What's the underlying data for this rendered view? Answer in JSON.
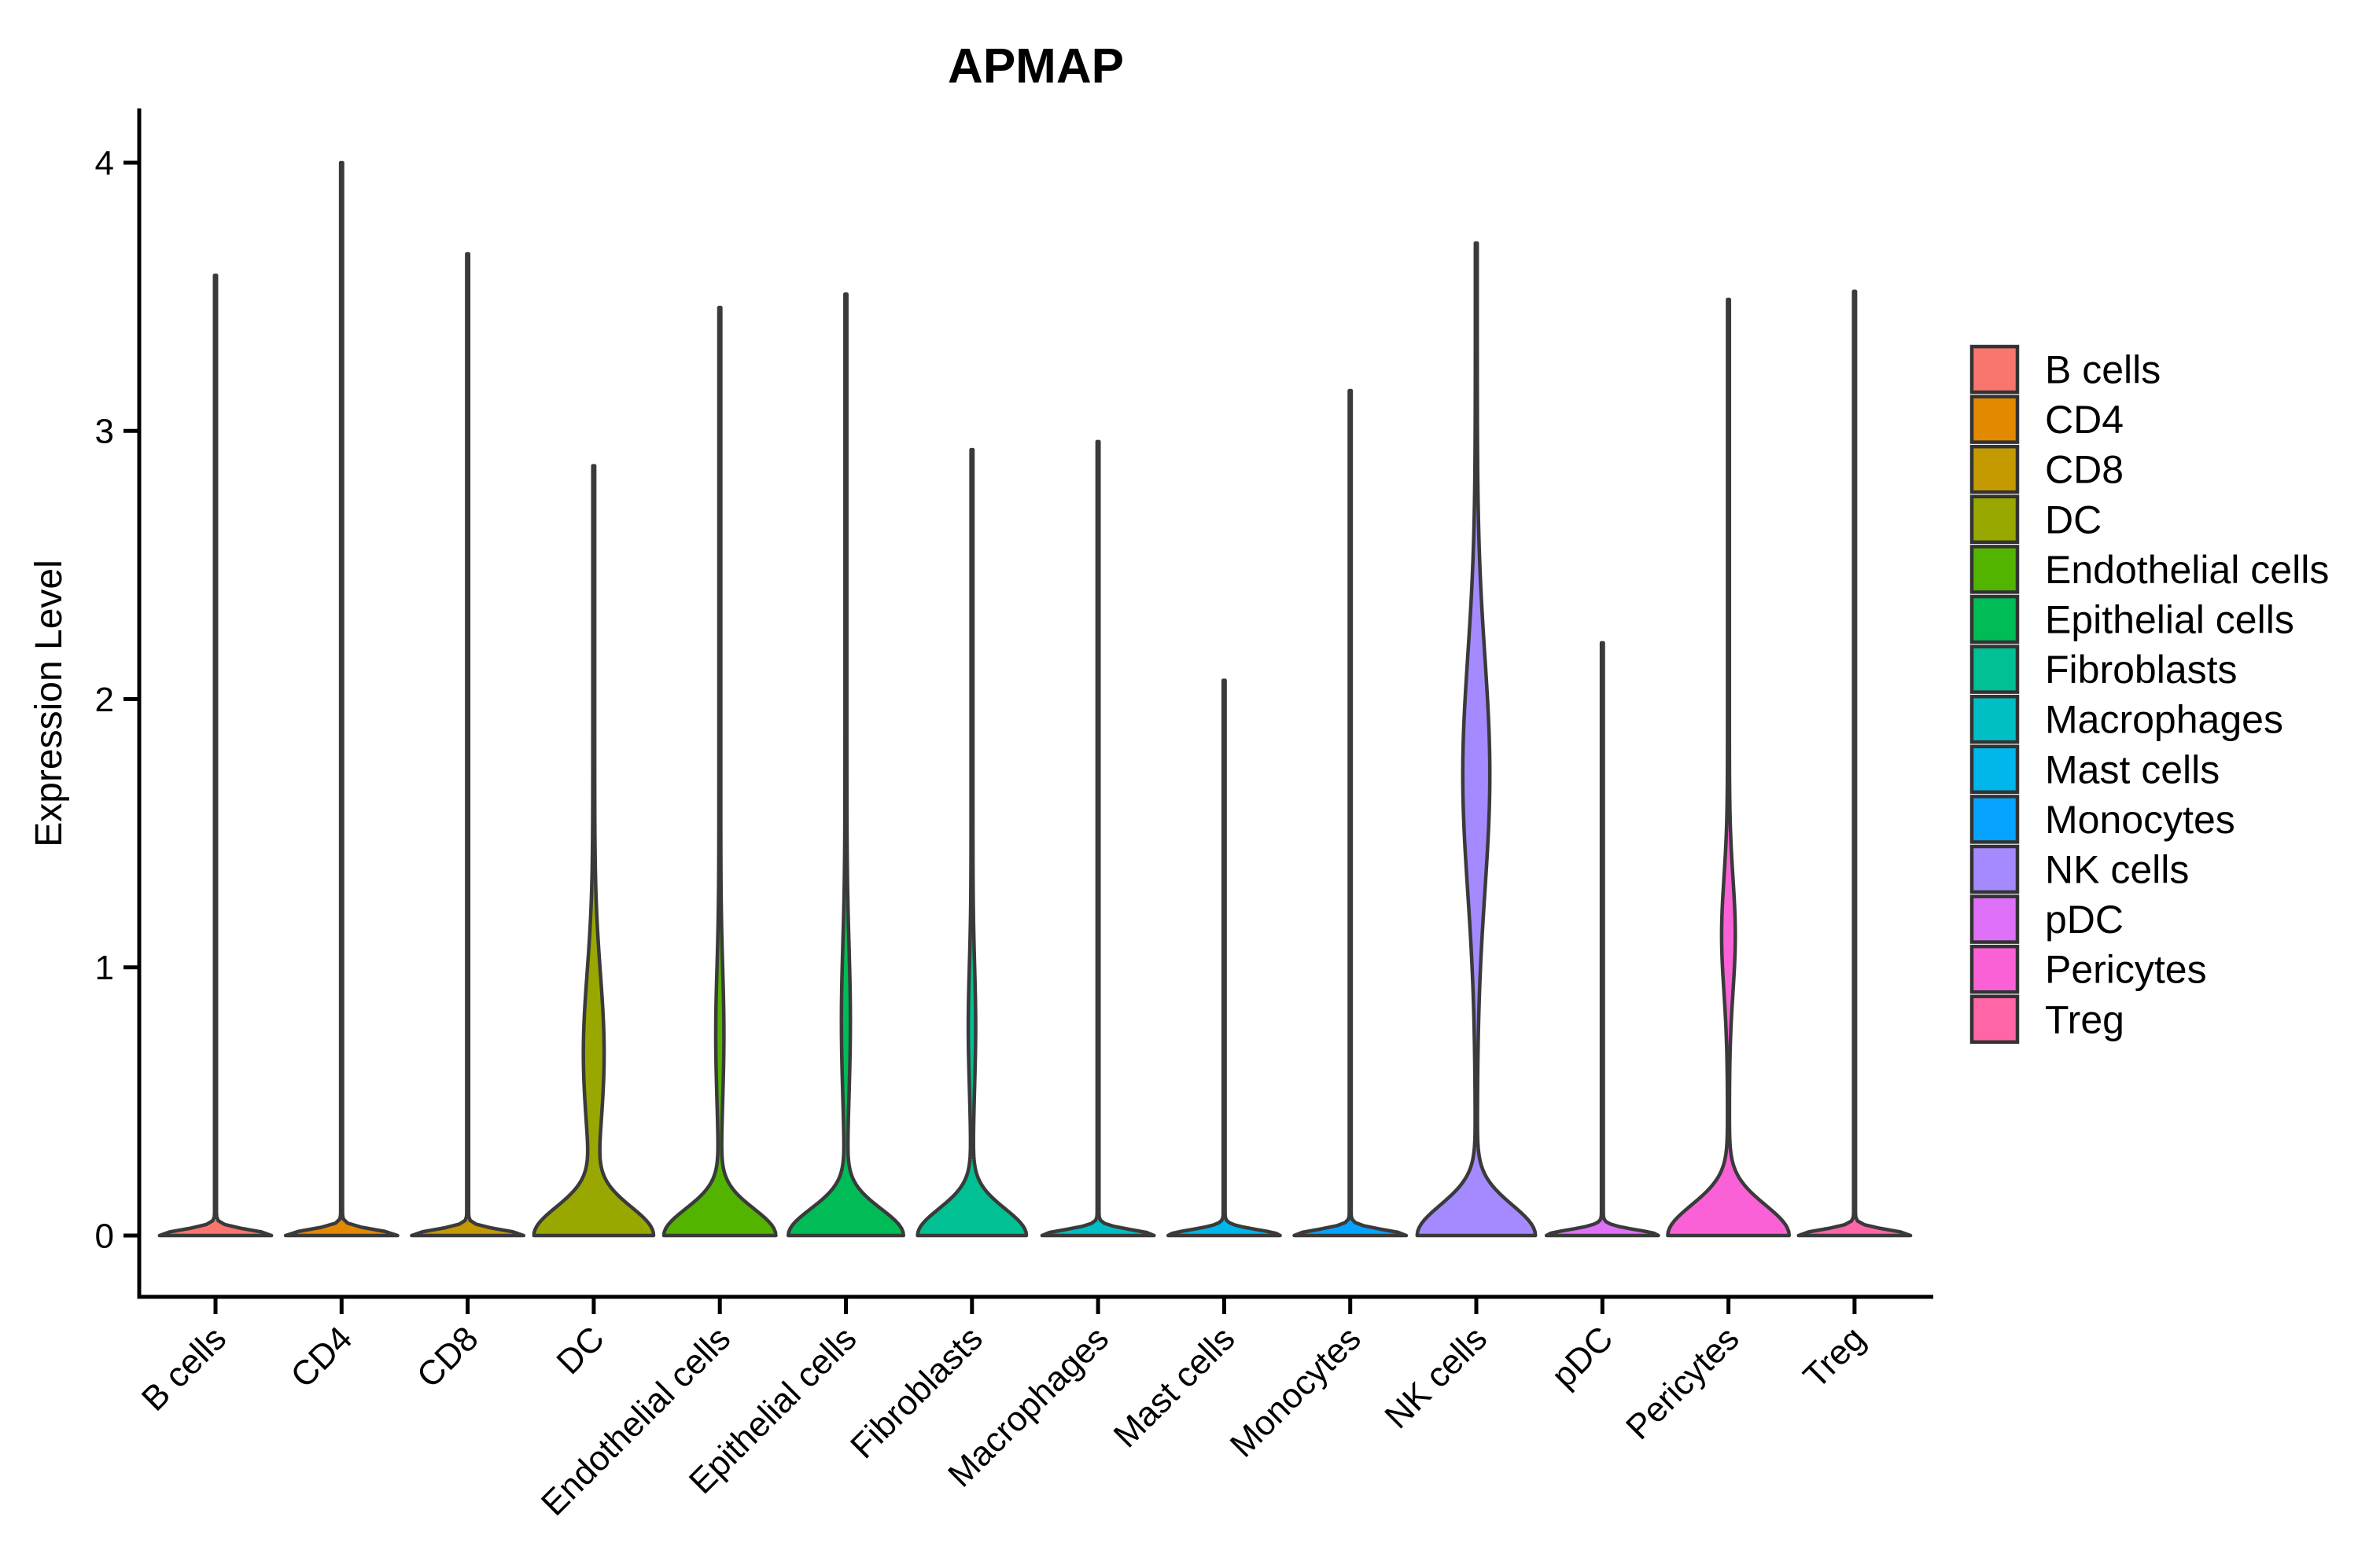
{
  "chart_data": {
    "type": "violin",
    "title": "APMAP",
    "xlabel": "",
    "ylabel": "Expression Level",
    "ylim": [
      0,
      4.2
    ],
    "y_ticks": [
      0,
      1,
      2,
      3,
      4
    ],
    "grid": false,
    "legend_position": "right",
    "outline_color": "#3A3A3A",
    "axis_color": "#000000",
    "categories": [
      "B cells",
      "CD4",
      "CD8",
      "DC",
      "Endothelial cells",
      "Epithelial cells",
      "Fibroblasts",
      "Macrophages",
      "Mast cells",
      "Monocytes",
      "NK cells",
      "pDC",
      "Pericytes",
      "Treg"
    ],
    "violins": [
      {
        "category": "B cells",
        "color": "#F8766D",
        "max_expression": 3.58,
        "zero_bulk": true,
        "density": {
          "base_hw": 70,
          "base_sigma": 0.03,
          "bulge_center": 0,
          "bulge_sigma": 1,
          "bulge_hw": 0
        }
      },
      {
        "category": "CD4",
        "color": "#E38900",
        "max_expression": 4.0,
        "zero_bulk": true,
        "density": {
          "base_hw": 70,
          "base_sigma": 0.03,
          "bulge_center": 0,
          "bulge_sigma": 1,
          "bulge_hw": 0
        }
      },
      {
        "category": "CD8",
        "color": "#C49A00",
        "max_expression": 3.66,
        "zero_bulk": true,
        "density": {
          "base_hw": 70,
          "base_sigma": 0.03,
          "bulge_center": 0,
          "bulge_sigma": 1,
          "bulge_hw": 0
        }
      },
      {
        "category": "DC",
        "color": "#99A800",
        "max_expression": 2.87,
        "zero_bulk": false,
        "density": {
          "base_hw": 74,
          "base_sigma": 0.15,
          "bulge_center": 0.68,
          "bulge_sigma": 0.42,
          "bulge_hw": 12
        }
      },
      {
        "category": "Endothelial cells",
        "color": "#53B400",
        "max_expression": 3.46,
        "zero_bulk": false,
        "density": {
          "base_hw": 70,
          "base_sigma": 0.14,
          "bulge_center": 0.75,
          "bulge_sigma": 0.35,
          "bulge_hw": 4
        }
      },
      {
        "category": "Epithelial cells",
        "color": "#00BC56",
        "max_expression": 3.51,
        "zero_bulk": false,
        "density": {
          "base_hw": 72,
          "base_sigma": 0.14,
          "bulge_center": 0.8,
          "bulge_sigma": 0.4,
          "bulge_hw": 4.5
        }
      },
      {
        "category": "Fibroblasts",
        "color": "#00C094",
        "max_expression": 2.93,
        "zero_bulk": false,
        "density": {
          "base_hw": 68,
          "base_sigma": 0.14,
          "bulge_center": 0.78,
          "bulge_sigma": 0.32,
          "bulge_hw": 3.5
        }
      },
      {
        "category": "Macrophages",
        "color": "#00BFC4",
        "max_expression": 2.96,
        "zero_bulk": true,
        "density": {
          "base_hw": 70,
          "base_sigma": 0.03,
          "bulge_center": 0,
          "bulge_sigma": 1,
          "bulge_hw": 0
        }
      },
      {
        "category": "Mast cells",
        "color": "#00B6EB",
        "max_expression": 2.07,
        "zero_bulk": true,
        "density": {
          "base_hw": 70,
          "base_sigma": 0.03,
          "bulge_center": 0,
          "bulge_sigma": 1,
          "bulge_hw": 0
        }
      },
      {
        "category": "Monocytes",
        "color": "#06A4FF",
        "max_expression": 3.15,
        "zero_bulk": true,
        "density": {
          "base_hw": 70,
          "base_sigma": 0.03,
          "bulge_center": 0,
          "bulge_sigma": 1,
          "bulge_hw": 0
        }
      },
      {
        "category": "NK cells",
        "color": "#A58AFF",
        "max_expression": 3.7,
        "zero_bulk": false,
        "density": {
          "base_hw": 74,
          "base_sigma": 0.16,
          "bulge_center": 1.72,
          "bulge_sigma": 0.62,
          "bulge_hw": 16
        }
      },
      {
        "category": "pDC",
        "color": "#DF70F8",
        "max_expression": 2.21,
        "zero_bulk": true,
        "density": {
          "base_hw": 70,
          "base_sigma": 0.03,
          "bulge_center": 0,
          "bulge_sigma": 1,
          "bulge_hw": 0
        }
      },
      {
        "category": "Pericytes",
        "color": "#FB61D7",
        "max_expression": 3.49,
        "zero_bulk": false,
        "density": {
          "base_hw": 76,
          "base_sigma": 0.16,
          "bulge_center": 1.12,
          "bulge_sigma": 0.3,
          "bulge_hw": 7.5
        }
      },
      {
        "category": "Treg",
        "color": "#FF66A8",
        "max_expression": 3.52,
        "zero_bulk": true,
        "density": {
          "base_hw": 70,
          "base_sigma": 0.03,
          "bulge_center": 0,
          "bulge_sigma": 1,
          "bulge_hw": 0
        }
      }
    ],
    "legend_entries": [
      "B cells",
      "CD4",
      "CD8",
      "DC",
      "Endothelial cells",
      "Epithelial cells",
      "Fibroblasts",
      "Macrophages",
      "Mast cells",
      "Monocytes",
      "NK cells",
      "pDC",
      "Pericytes",
      "Treg"
    ]
  }
}
